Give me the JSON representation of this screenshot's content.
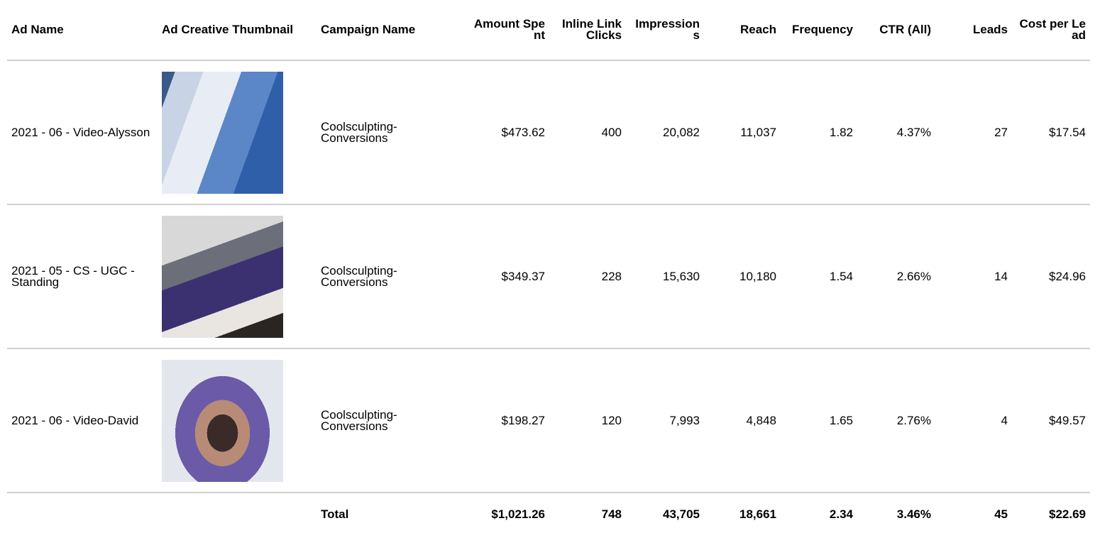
{
  "table": {
    "headers": [
      "Ad Name",
      "Ad Creative Thumbnail",
      "Campaign Name",
      "Amount Spent",
      "Inline Link Clicks",
      "Impressions",
      "Reach",
      "Frequency",
      "CTR (All)",
      "Leads",
      "Cost per Lead"
    ],
    "rows": [
      {
        "ad_name": "2021 - 06 - Video-Alysson",
        "campaign_name": "Coolsculpting-Conversions",
        "metrics": [
          "$473.62",
          "400",
          "20,082",
          "11,037",
          "1.82",
          "4.37%",
          "27",
          "$17.54"
        ]
      },
      {
        "ad_name": "2021 - 05 - CS - UGC - Standing",
        "campaign_name": "Coolsculpting-Conversions",
        "metrics": [
          "$349.37",
          "228",
          "15,630",
          "10,180",
          "1.54",
          "2.66%",
          "14",
          "$24.96"
        ]
      },
      {
        "ad_name": "2021 - 06 - Video-David",
        "campaign_name": "Coolsculpting-Conversions",
        "metrics": [
          "$198.27",
          "120",
          "7,993",
          "4,848",
          "1.65",
          "2.76%",
          "4",
          "$49.57"
        ]
      }
    ],
    "total": {
      "label": "Total",
      "metrics": [
        "$1,021.26",
        "748",
        "43,705",
        "18,661",
        "2.34",
        "3.46%",
        "45",
        "$22.69"
      ]
    }
  }
}
